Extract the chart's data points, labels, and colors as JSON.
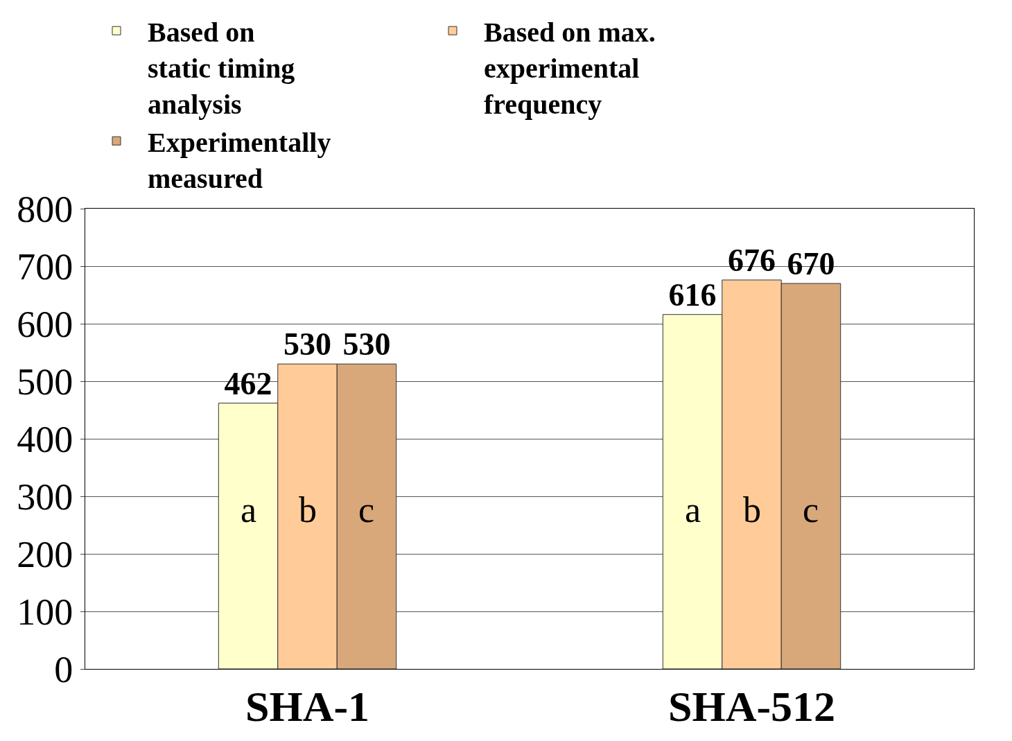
{
  "chart_data": {
    "type": "bar",
    "categories": [
      "SHA-1",
      "SHA-512"
    ],
    "series": [
      {
        "name": "Based on static timing analysis",
        "color": "#ffffcc",
        "values": [
          462,
          616
        ]
      },
      {
        "name": "Based on max. experimental frequency",
        "color": "#ffcc99",
        "values": [
          530,
          676
        ]
      },
      {
        "name": "Experimentally measured",
        "color": "#d9a87a",
        "values": [
          530,
          670
        ]
      }
    ],
    "ylim": [
      0,
      800
    ],
    "yticks": [
      0,
      100,
      200,
      300,
      400,
      500,
      600,
      700,
      800
    ],
    "grid": "y",
    "legend": "top",
    "data_labels": true,
    "annotations": [
      "a",
      "b",
      "c",
      "a",
      "b",
      "c"
    ]
  }
}
